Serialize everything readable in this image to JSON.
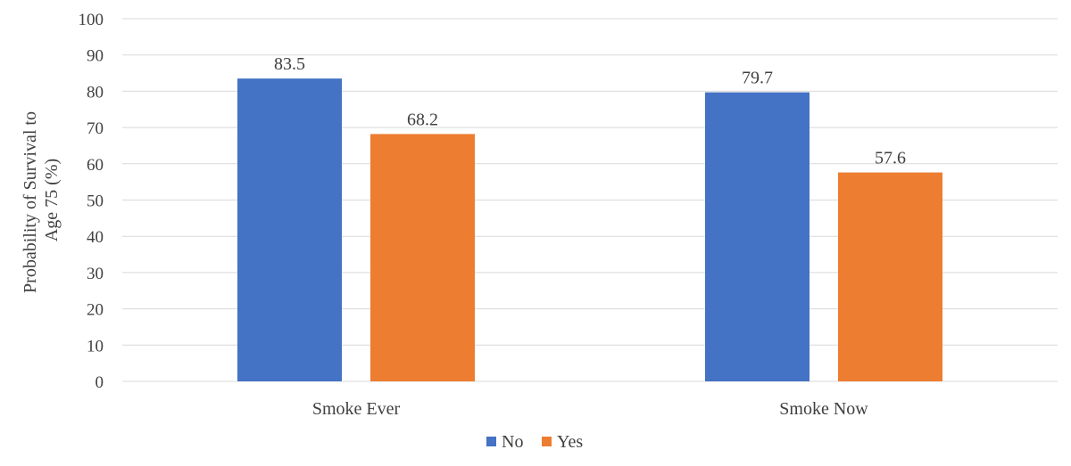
{
  "chart_data": {
    "type": "bar",
    "categories": [
      "Smoke Ever",
      "Smoke Now"
    ],
    "series": [
      {
        "name": "No",
        "values": [
          83.5,
          79.7
        ],
        "color": "#4472C4"
      },
      {
        "name": "Yes",
        "values": [
          68.2,
          57.6
        ],
        "color": "#ED7D31"
      }
    ],
    "data_labels": [
      [
        "83.5",
        "79.7"
      ],
      [
        "68.2",
        "57.6"
      ]
    ],
    "ylabel": "Probability of Survival to Age 75 (%)",
    "ylabel_lines": [
      "Probability of Survival to",
      "Age 75 (%)"
    ],
    "ylim": [
      0,
      100
    ],
    "yticks": [
      0,
      10,
      20,
      30,
      40,
      50,
      60,
      70,
      80,
      90,
      100
    ],
    "ytick_labels": [
      "0",
      "10",
      "20",
      "30",
      "40",
      "50",
      "60",
      "70",
      "80",
      "90",
      "100"
    ],
    "grid": true,
    "legend": "bottom",
    "colors": {
      "gridline": "#D9D9D9",
      "text": "#404040"
    }
  }
}
